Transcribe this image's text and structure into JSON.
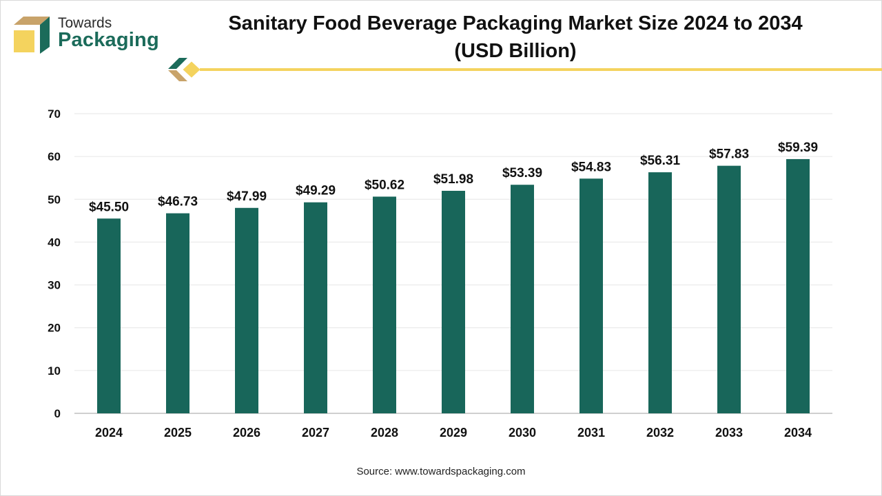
{
  "header": {
    "logo_line1": "Towards",
    "logo_line2": "Packaging",
    "title_line1": "Sanitary Food Beverage Packaging Market Size 2024 to 2034",
    "title_line2": "(USD Billion)"
  },
  "colors": {
    "bar": "#18665a",
    "accent": "#f4d35e",
    "logo_green": "#1b6b5a",
    "logo_tan": "#c8a36a"
  },
  "footer": {
    "source": "Source: www.towardspackaging.com"
  },
  "chart_data": {
    "type": "bar",
    "title": "Sanitary Food Beverage Packaging Market Size 2024 to 2034 (USD Billion)",
    "categories": [
      "2024",
      "2025",
      "2026",
      "2027",
      "2028",
      "2029",
      "2030",
      "2031",
      "2032",
      "2033",
      "2034"
    ],
    "values": [
      45.5,
      46.73,
      47.99,
      49.29,
      50.62,
      51.98,
      53.39,
      54.83,
      56.31,
      57.83,
      59.39
    ],
    "data_labels": [
      "$45.50",
      "$46.73",
      "$47.99",
      "$49.29",
      "$50.62",
      "$51.98",
      "$53.39",
      "$54.83",
      "$56.31",
      "$57.83",
      "$59.39"
    ],
    "ylim": [
      0,
      70
    ],
    "yticks": [
      0,
      10,
      20,
      30,
      40,
      50,
      60,
      70
    ],
    "grid": true,
    "legend": "none"
  }
}
